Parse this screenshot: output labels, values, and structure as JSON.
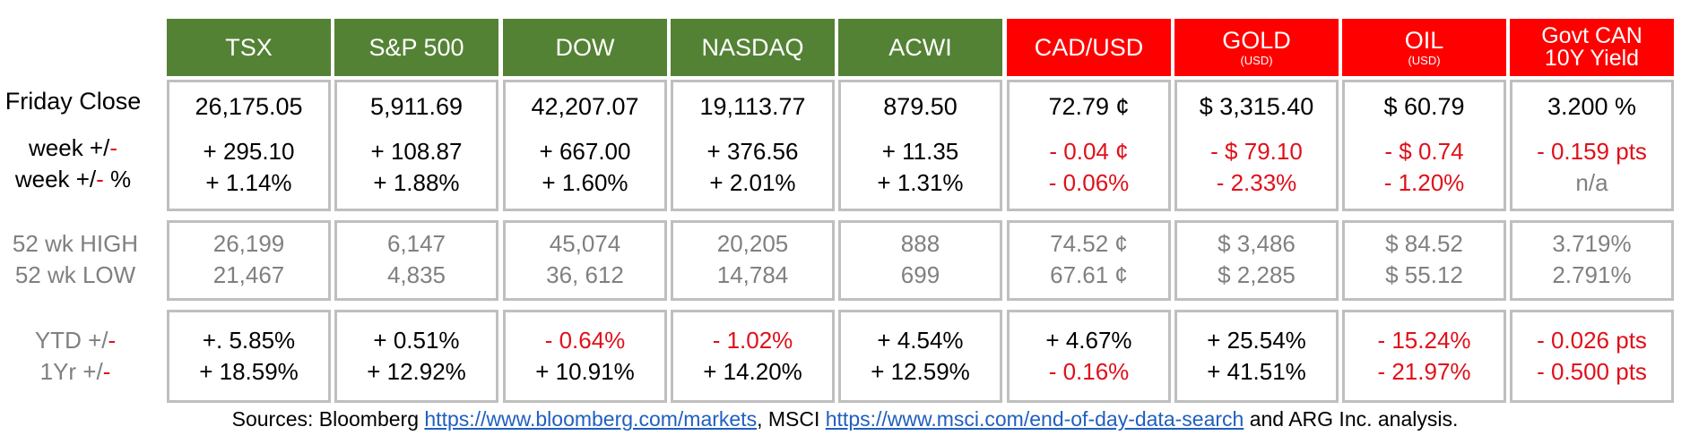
{
  "columns": [
    {
      "id": "tsx",
      "header": "TSX",
      "sub": "",
      "color": "#548235",
      "close": "26,175.05",
      "week": "+ 295.10",
      "week_pct": "+ 1.14%",
      "high": "26,199",
      "low": "21,467",
      "ytd": "+.  5.85%",
      "yr": "+ 18.59%",
      "colors": {
        "close": "black",
        "week": "black",
        "week_pct": "black",
        "ytd": "black",
        "yr": "black"
      }
    },
    {
      "id": "sp500",
      "header": "S&P 500",
      "sub": "",
      "color": "#548235",
      "close": "5,911.69",
      "week": "+ 108.87",
      "week_pct": "+ 1.88%",
      "high": "6,147",
      "low": "4,835",
      "ytd": "+   0.51%",
      "yr": "+ 12.92%",
      "colors": {
        "close": "black",
        "week": "black",
        "week_pct": "black",
        "ytd": "black",
        "yr": "black"
      }
    },
    {
      "id": "dow",
      "header": "DOW",
      "sub": "",
      "color": "#548235",
      "close": "42,207.07",
      "week": "+ 667.00",
      "week_pct": "+ 1.60%",
      "high": "45,074",
      "low": "36, 612",
      "ytd": "-   0.64%",
      "yr": "+ 10.91%",
      "colors": {
        "close": "black",
        "week": "black",
        "week_pct": "black",
        "ytd": "red",
        "yr": "black"
      }
    },
    {
      "id": "nasdaq",
      "header": "NASDAQ",
      "sub": "",
      "color": "#548235",
      "close": "19,113.77",
      "week": "+ 376.56",
      "week_pct": "+ 2.01%",
      "high": "20,205",
      "low": "14,784",
      "ytd": "-   1.02%",
      "yr": "+ 14.20%",
      "colors": {
        "close": "black",
        "week": "black",
        "week_pct": "black",
        "ytd": "red",
        "yr": "black"
      }
    },
    {
      "id": "acwi",
      "header": "ACWI",
      "sub": "",
      "color": "#548235",
      "close": "879.50",
      "week": "+ 11.35",
      "week_pct": "+ 1.31%",
      "high": "888",
      "low": "699",
      "ytd": "+   4.54%",
      "yr": "+ 12.59%",
      "colors": {
        "close": "black",
        "week": "black",
        "week_pct": "black",
        "ytd": "black",
        "yr": "black"
      }
    },
    {
      "id": "cadusd",
      "header": "CAD/USD",
      "sub": "",
      "color": "#ff0000",
      "close": "72.79 ¢",
      "week": "- 0.04 ¢",
      "week_pct": "- 0.06%",
      "high": "74.52 ¢",
      "low": "67.61 ¢",
      "ytd": "+ 4.67%",
      "yr": "- 0.16%",
      "colors": {
        "close": "black",
        "week": "red",
        "week_pct": "red",
        "ytd": "black",
        "yr": "red"
      }
    },
    {
      "id": "gold",
      "header": "GOLD",
      "sub": "(USD)",
      "color": "#ff0000",
      "close": "$ 3,315.40",
      "week": "- $ 79.10",
      "week_pct": "- 2.33%",
      "high": "$ 3,486",
      "low": "$ 2,285",
      "ytd": "+ 25.54%",
      "yr": "+ 41.51%",
      "colors": {
        "close": "black",
        "week": "red",
        "week_pct": "red",
        "ytd": "black",
        "yr": "black"
      }
    },
    {
      "id": "oil",
      "header": "OIL",
      "sub": "(USD)",
      "color": "#ff0000",
      "close": "$ 60.79",
      "week": "- $ 0.74",
      "week_pct": "- 1.20%",
      "high": "$ 84.52",
      "low": "$ 55.12",
      "ytd": "- 15.24%",
      "yr": "- 21.97%",
      "colors": {
        "close": "black",
        "week": "red",
        "week_pct": "red",
        "ytd": "red",
        "yr": "red"
      }
    },
    {
      "id": "govcan",
      "header": "Govt CAN",
      "header2": "10Y Yield",
      "sub": "",
      "color": "#ff0000",
      "close": "3.200 %",
      "week": "- 0.159 pts",
      "week_pct": "n/a",
      "high": "3.719%",
      "low": "2.791%",
      "ytd": "- 0.026 pts",
      "yr": "- 0.500 pts",
      "colors": {
        "close": "black",
        "week": "red",
        "week_pct": "gray",
        "ytd": "red",
        "yr": "red"
      }
    }
  ],
  "row_labels": {
    "close": "Friday Close",
    "week_pre": "week +/",
    "week_dash": "-",
    "week_pct_pre": "week +/",
    "week_pct_dash": "-",
    "week_pct_post": " %",
    "high": "52 wk HIGH",
    "low": "52 wk LOW",
    "ytd_pre": "YTD +/",
    "ytd_dash": "-",
    "yr_pre": "1Yr +/",
    "yr_dash": "-"
  },
  "footer": {
    "pre": "Sources: Bloomberg ",
    "link1": "https://www.bloomberg.com/markets",
    "mid": ", MSCI ",
    "link2": "https://www.msci.com/end-of-day-data-search",
    "post": " and ARG Inc. analysis."
  }
}
